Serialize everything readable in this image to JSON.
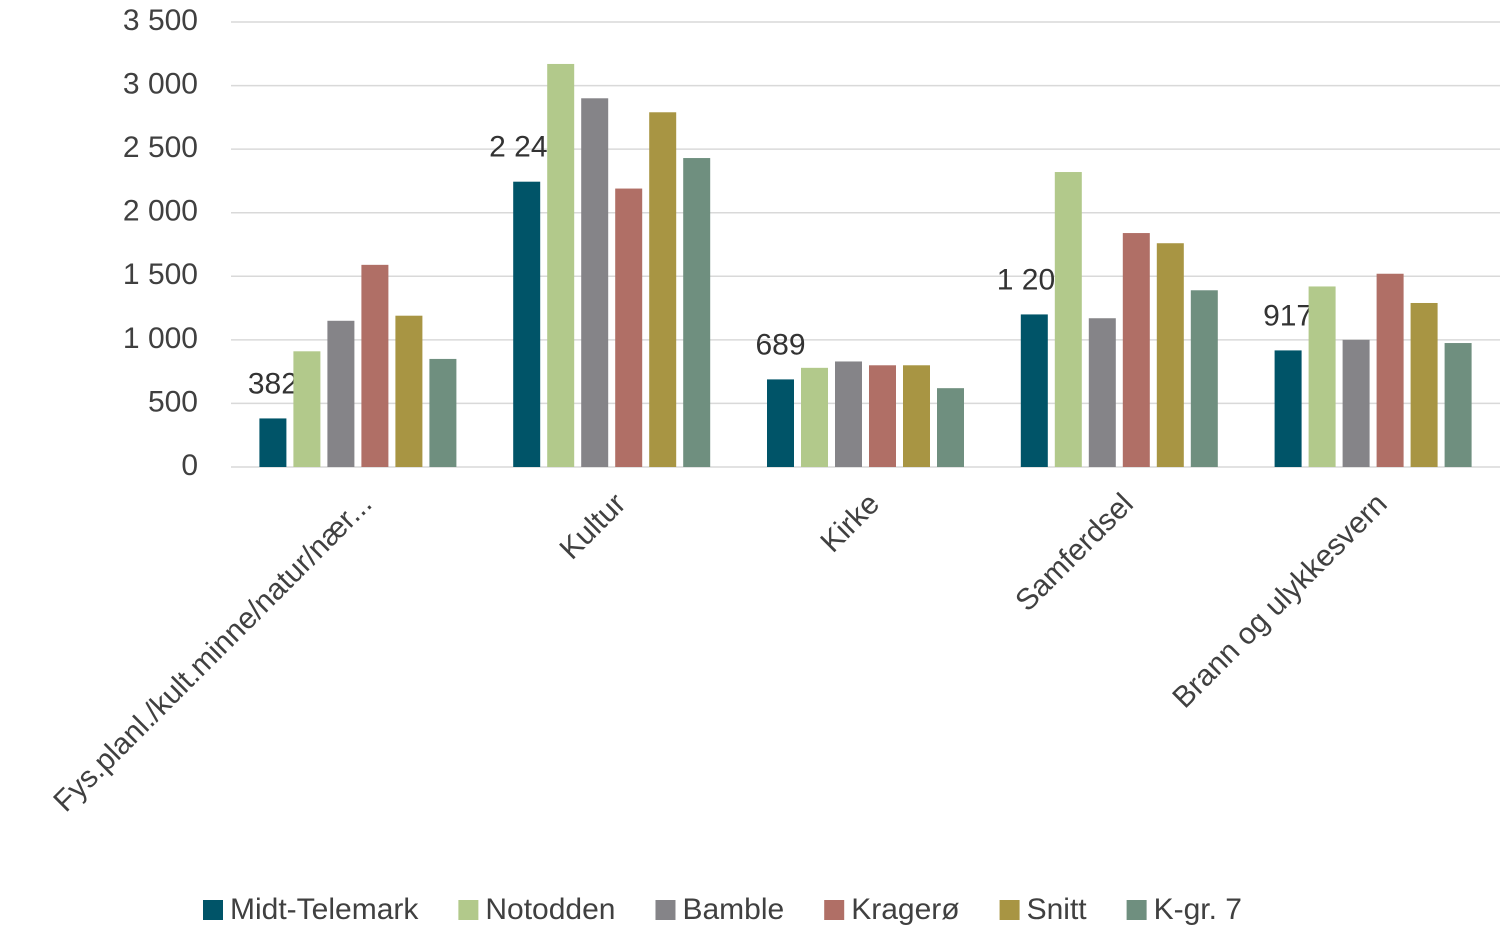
{
  "chart_data": {
    "type": "bar",
    "categories": [
      "Fys.planl./kult.minne/natur/nær...",
      "Kultur",
      "Kirke",
      "Samferdsel",
      "Brann og ulykkesvern"
    ],
    "series": [
      {
        "name": "Midt-Telemark",
        "color": "#005468",
        "values": [
          382,
          2244,
          689,
          1200,
          917
        ],
        "value_labels": [
          "382",
          "2 244",
          "689",
          "1 200",
          "917"
        ]
      },
      {
        "name": "Notodden",
        "color": "#b2c98b",
        "values": [
          910,
          3170,
          780,
          2320,
          1420
        ]
      },
      {
        "name": "Bamble",
        "color": "#858488",
        "values": [
          1150,
          2900,
          830,
          1170,
          1000
        ]
      },
      {
        "name": "Kragerø",
        "color": "#b06f66",
        "values": [
          1590,
          2190,
          800,
          1840,
          1520
        ]
      },
      {
        "name": "Snitt",
        "color": "#a89543",
        "values": [
          1190,
          2790,
          800,
          1760,
          1290
        ]
      },
      {
        "name": "K-gr. 7",
        "color": "#6f8f7f",
        "values": [
          850,
          2430,
          620,
          1390,
          975
        ]
      }
    ],
    "ylim": [
      0,
      3500
    ],
    "yticks": [
      0,
      500,
      {
        "value": 1000,
        "label": "1 000"
      },
      {
        "value": 1500,
        "label": "1 500"
      },
      {
        "value": 2000,
        "label": "2 000"
      },
      {
        "value": 2500,
        "label": "2 500"
      },
      {
        "value": 3000,
        "label": "3 000"
      },
      {
        "value": 3500,
        "label": "3 500"
      }
    ],
    "grid": true
  }
}
